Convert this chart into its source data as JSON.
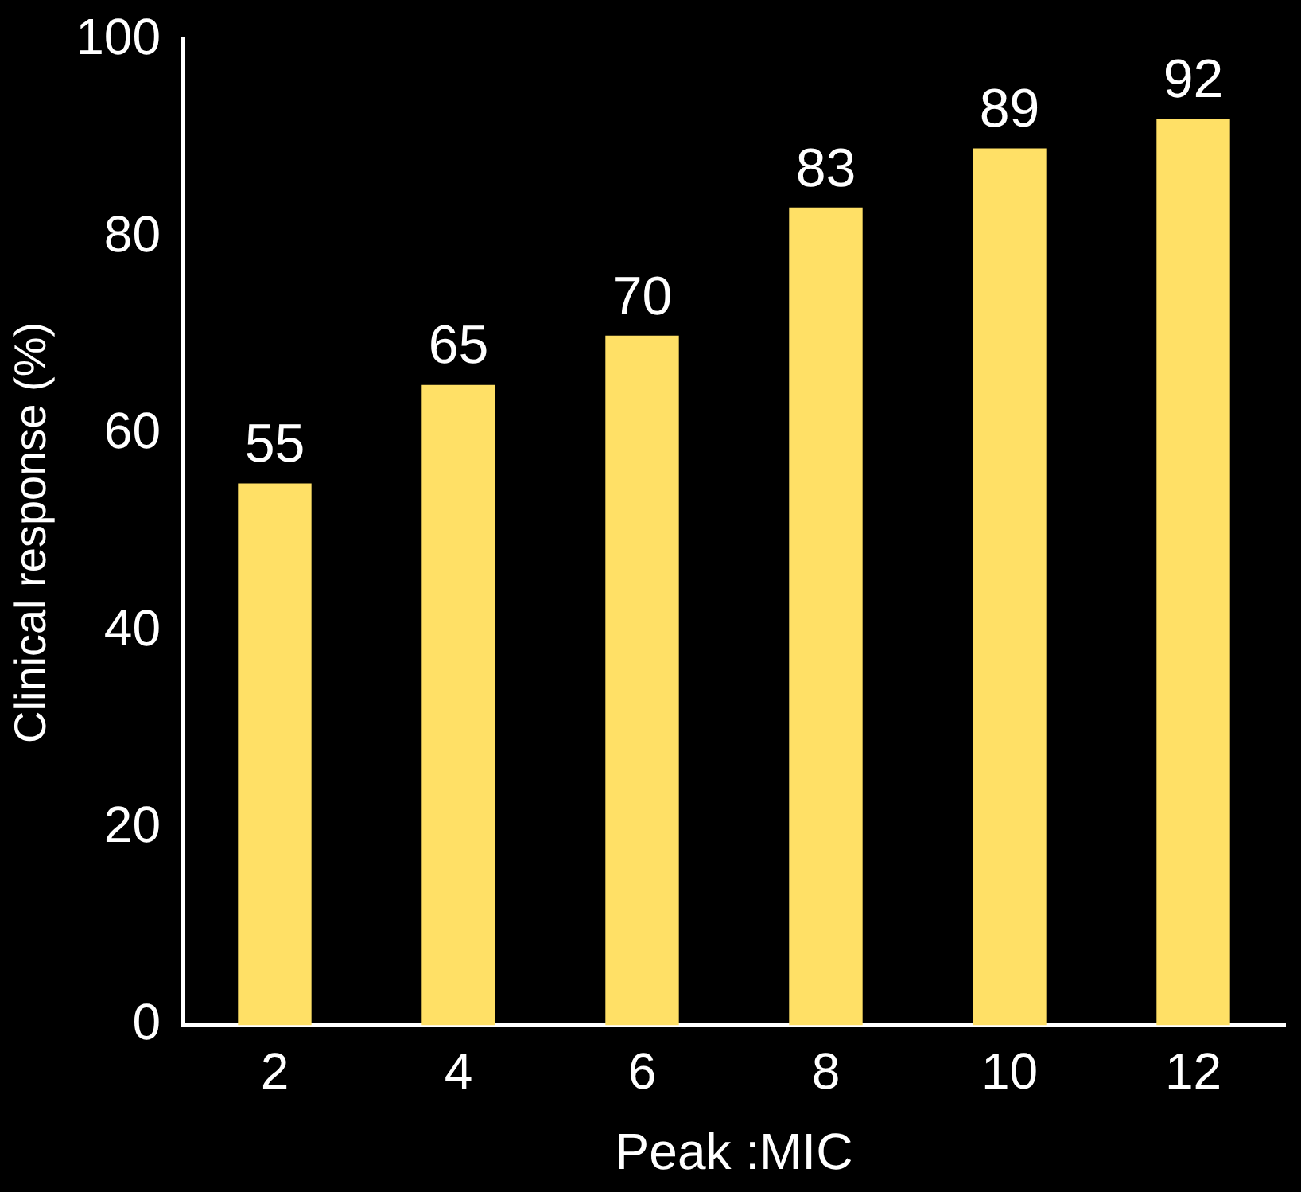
{
  "chart_data": {
    "type": "bar",
    "xlabel": "Peak :MIC",
    "ylabel": "Clinical response (%)",
    "categories": [
      "2",
      "4",
      "6",
      "8",
      "10",
      "12"
    ],
    "values": [
      55,
      65,
      70,
      83,
      89,
      92
    ],
    "color": "#ffe066",
    "ylim": [
      0,
      100
    ],
    "yticks": [
      0,
      20,
      40,
      60,
      80,
      100
    ],
    "grid": false,
    "legend": false,
    "data_labels": true
  }
}
